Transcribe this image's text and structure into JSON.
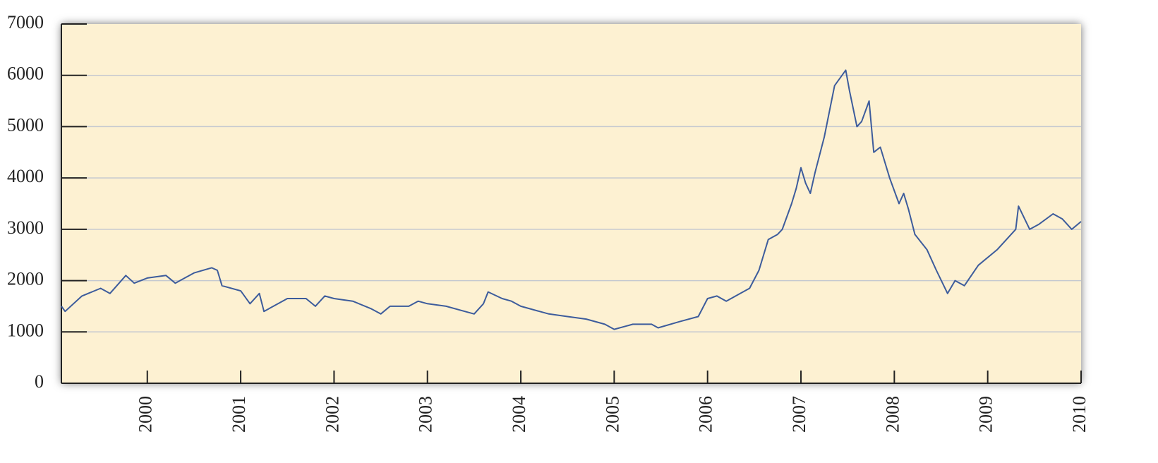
{
  "chart_data": {
    "type": "line",
    "color": "#3d5c9c",
    "grid": true,
    "xlim": [
      1999.08,
      2010
    ],
    "ylim": [
      0,
      7000
    ],
    "yticks": [
      0,
      1000,
      2000,
      3000,
      4000,
      5000,
      6000,
      7000
    ],
    "xticks": [
      2000,
      2001,
      2002,
      2003,
      2004,
      2005,
      2006,
      2007,
      2008,
      2009,
      2010
    ],
    "x": [
      1999.08,
      1999.12,
      1999.3,
      1999.5,
      1999.6,
      1999.77,
      1999.86,
      2000.0,
      2000.2,
      2000.3,
      2000.5,
      2000.69,
      2000.75,
      2000.8,
      2001.0,
      2001.1,
      2001.2,
      2001.25,
      2001.4,
      2001.5,
      2001.7,
      2001.8,
      2001.9,
      2002.0,
      2002.2,
      2002.4,
      2002.5,
      2002.6,
      2002.8,
      2002.9,
      2003.0,
      2003.2,
      2003.4,
      2003.5,
      2003.6,
      2003.65,
      2003.8,
      2003.9,
      2004.0,
      2004.2,
      2004.3,
      2004.5,
      2004.7,
      2004.9,
      2005.0,
      2005.2,
      2005.4,
      2005.47,
      2005.7,
      2005.9,
      2006.0,
      2006.1,
      2006.2,
      2006.35,
      2006.45,
      2006.55,
      2006.65,
      2006.75,
      2006.8,
      2006.9,
      2006.95,
      2007.0,
      2007.05,
      2007.1,
      2007.15,
      2007.25,
      2007.36,
      2007.48,
      2007.52,
      2007.6,
      2007.65,
      2007.73,
      2007.78,
      2007.85,
      2007.95,
      2008.05,
      2008.1,
      2008.15,
      2008.22,
      2008.35,
      2008.45,
      2008.57,
      2008.65,
      2008.75,
      2008.9,
      2009.1,
      2009.3,
      2009.33,
      2009.45,
      2009.55,
      2009.7,
      2009.8,
      2009.9,
      2010.0
    ],
    "values": [
      1500,
      1400,
      1700,
      1850,
      1750,
      2100,
      1950,
      2050,
      2100,
      1950,
      2150,
      2250,
      2200,
      1900,
      1800,
      1550,
      1750,
      1400,
      1550,
      1650,
      1650,
      1500,
      1700,
      1650,
      1600,
      1450,
      1350,
      1500,
      1500,
      1600,
      1550,
      1500,
      1400,
      1350,
      1550,
      1780,
      1650,
      1600,
      1500,
      1400,
      1350,
      1300,
      1250,
      1150,
      1050,
      1150,
      1150,
      1080,
      1200,
      1300,
      1650,
      1700,
      1600,
      1750,
      1850,
      2200,
      2800,
      2900,
      3000,
      3500,
      3800,
      4200,
      3900,
      3700,
      4100,
      4800,
      5800,
      6100,
      5700,
      5000,
      5100,
      5500,
      4500,
      4600,
      4000,
      3500,
      3700,
      3400,
      2900,
      2600,
      2200,
      1750,
      2000,
      1900,
      2300,
      2600,
      3000,
      3450,
      3000,
      3100,
      3300,
      3200,
      3000,
      3150
    ]
  }
}
